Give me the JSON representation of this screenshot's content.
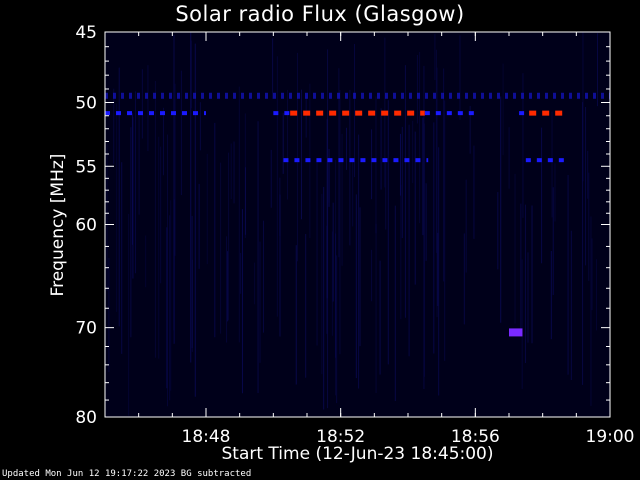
{
  "colors": {
    "background": "#000000",
    "plot_background": "#00001a",
    "axis": "#ffffff",
    "streak": "#0a0a55",
    "low_intensity": "#1a1aff",
    "high_intensity": "#ff2a00",
    "mid_intensity": "#7a2aff"
  },
  "chart_data": {
    "type": "heatmap",
    "title": "Solar radio Flux (Glasgow)",
    "xlabel": "Start Time (12-Jun-23 18:45:00)",
    "ylabel": "Frequency [MHz]",
    "x_unit": "time of day",
    "x_range": [
      "18:45",
      "19:00"
    ],
    "x_ticks": [
      "18:48",
      "18:52",
      "18:56",
      "19:00"
    ],
    "y_scale": "log",
    "y_range": [
      45,
      80
    ],
    "y_reversed": true,
    "y_ticks": [
      45,
      50,
      55,
      60,
      70,
      80
    ],
    "footer": "Updated Mon Jun 12 19:17:22 2023   BG subtracted",
    "bands": [
      {
        "freq": 49.5,
        "start": "18:45",
        "end": "19:00",
        "intensity": "very-low",
        "pattern": "dashed"
      },
      {
        "freq": 50.8,
        "start": "18:45",
        "end": "18:48",
        "intensity": "low",
        "pattern": "dashed"
      },
      {
        "freq": 50.8,
        "start": "18:50",
        "end": "18:50.5",
        "intensity": "low",
        "pattern": "dashed"
      },
      {
        "freq": 50.8,
        "start": "18:50.5",
        "end": "18:54.5",
        "intensity": "high",
        "pattern": "dashed"
      },
      {
        "freq": 50.8,
        "start": "18:54.5",
        "end": "18:56",
        "intensity": "low",
        "pattern": "dashed"
      },
      {
        "freq": 50.8,
        "start": "18:57.3",
        "end": "18:57.6",
        "intensity": "low",
        "pattern": "dashed"
      },
      {
        "freq": 50.8,
        "start": "18:57.6",
        "end": "18:58.7",
        "intensity": "high",
        "pattern": "dashed"
      },
      {
        "freq": 54.5,
        "start": "18:50.3",
        "end": "18:54.6",
        "intensity": "low",
        "pattern": "dashed"
      },
      {
        "freq": 54.5,
        "start": "18:57.5",
        "end": "18:58.7",
        "intensity": "low",
        "pattern": "dashed"
      },
      {
        "freq": 70.5,
        "start": "18:57",
        "end": "18:57.4",
        "intensity": "mid",
        "pattern": "block"
      }
    ]
  }
}
